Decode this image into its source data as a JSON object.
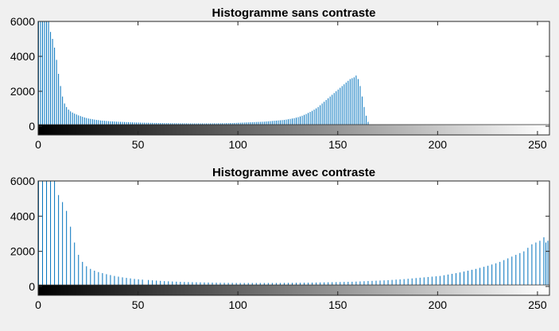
{
  "colors": {
    "figure_background": "#f0f0f0",
    "axes_background": "#ffffff",
    "stem": "#0072bd",
    "axis": "#262626"
  },
  "chart_data": [
    {
      "type": "bar",
      "title": "Histogramme sans contraste",
      "xlabel": "",
      "ylabel": "",
      "xlim": [
        0,
        256
      ],
      "ylim": [
        -500,
        6000
      ],
      "xticks": [
        "0",
        "50",
        "100",
        "150",
        "200",
        "250"
      ],
      "yticks": [
        "0",
        "2000",
        "4000",
        "6000"
      ],
      "colorbar": "grayscale 0-255",
      "grid": false,
      "points": [
        [
          0,
          6000
        ],
        [
          1,
          6000
        ],
        [
          2,
          6000
        ],
        [
          3,
          6000
        ],
        [
          4,
          6000
        ],
        [
          5,
          6000
        ],
        [
          6,
          5400
        ],
        [
          7,
          5000
        ],
        [
          8,
          4500
        ],
        [
          9,
          3800
        ],
        [
          10,
          3000
        ],
        [
          11,
          2300
        ],
        [
          12,
          1700
        ],
        [
          13,
          1300
        ],
        [
          14,
          1100
        ],
        [
          15,
          950
        ],
        [
          16,
          850
        ],
        [
          17,
          780
        ],
        [
          18,
          720
        ],
        [
          19,
          670
        ],
        [
          20,
          620
        ],
        [
          21,
          580
        ],
        [
          22,
          540
        ],
        [
          23,
          500
        ],
        [
          24,
          470
        ],
        [
          25,
          440
        ],
        [
          26,
          420
        ],
        [
          27,
          400
        ],
        [
          28,
          380
        ],
        [
          29,
          360
        ],
        [
          30,
          350
        ],
        [
          31,
          330
        ],
        [
          32,
          320
        ],
        [
          33,
          310
        ],
        [
          34,
          300
        ],
        [
          35,
          290
        ],
        [
          36,
          280
        ],
        [
          37,
          275
        ],
        [
          38,
          270
        ],
        [
          39,
          260
        ],
        [
          40,
          255
        ],
        [
          41,
          250
        ],
        [
          42,
          245
        ],
        [
          43,
          240
        ],
        [
          44,
          235
        ],
        [
          45,
          230
        ],
        [
          46,
          225
        ],
        [
          47,
          220
        ],
        [
          48,
          215
        ],
        [
          49,
          210
        ],
        [
          50,
          210
        ],
        [
          51,
          205
        ],
        [
          52,
          200
        ],
        [
          53,
          200
        ],
        [
          54,
          195
        ],
        [
          55,
          195
        ],
        [
          56,
          190
        ],
        [
          57,
          190
        ],
        [
          58,
          185
        ],
        [
          59,
          185
        ],
        [
          60,
          180
        ],
        [
          61,
          180
        ],
        [
          62,
          180
        ],
        [
          63,
          175
        ],
        [
          64,
          175
        ],
        [
          65,
          175
        ],
        [
          66,
          170
        ],
        [
          67,
          170
        ],
        [
          68,
          170
        ],
        [
          69,
          170
        ],
        [
          70,
          165
        ],
        [
          71,
          165
        ],
        [
          72,
          165
        ],
        [
          73,
          165
        ],
        [
          74,
          165
        ],
        [
          75,
          160
        ],
        [
          76,
          160
        ],
        [
          77,
          160
        ],
        [
          78,
          160
        ],
        [
          79,
          160
        ],
        [
          80,
          160
        ],
        [
          81,
          160
        ],
        [
          82,
          160
        ],
        [
          83,
          160
        ],
        [
          84,
          160
        ],
        [
          85,
          160
        ],
        [
          86,
          160
        ],
        [
          87,
          165
        ],
        [
          88,
          165
        ],
        [
          89,
          165
        ],
        [
          90,
          165
        ],
        [
          91,
          170
        ],
        [
          92,
          170
        ],
        [
          93,
          170
        ],
        [
          94,
          175
        ],
        [
          95,
          175
        ],
        [
          96,
          180
        ],
        [
          97,
          180
        ],
        [
          98,
          185
        ],
        [
          99,
          190
        ],
        [
          100,
          195
        ],
        [
          101,
          200
        ],
        [
          102,
          205
        ],
        [
          103,
          210
        ],
        [
          104,
          215
        ],
        [
          105,
          220
        ],
        [
          106,
          225
        ],
        [
          107,
          230
        ],
        [
          108,
          235
        ],
        [
          109,
          240
        ],
        [
          110,
          245
        ],
        [
          111,
          250
        ],
        [
          112,
          255
        ],
        [
          113,
          260
        ],
        [
          114,
          270
        ],
        [
          115,
          280
        ],
        [
          116,
          290
        ],
        [
          117,
          300
        ],
        [
          118,
          310
        ],
        [
          119,
          320
        ],
        [
          120,
          330
        ],
        [
          121,
          340
        ],
        [
          122,
          350
        ],
        [
          123,
          360
        ],
        [
          124,
          380
        ],
        [
          125,
          400
        ],
        [
          126,
          420
        ],
        [
          127,
          440
        ],
        [
          128,
          460
        ],
        [
          129,
          490
        ],
        [
          130,
          520
        ],
        [
          131,
          560
        ],
        [
          132,
          600
        ],
        [
          133,
          650
        ],
        [
          134,
          700
        ],
        [
          135,
          760
        ],
        [
          136,
          820
        ],
        [
          137,
          880
        ],
        [
          138,
          950
        ],
        [
          139,
          1020
        ],
        [
          140,
          1100
        ],
        [
          141,
          1200
        ],
        [
          142,
          1300
        ],
        [
          143,
          1400
        ],
        [
          144,
          1500
        ],
        [
          145,
          1600
        ],
        [
          146,
          1700
        ],
        [
          147,
          1800
        ],
        [
          148,
          1900
        ],
        [
          149,
          2000
        ],
        [
          150,
          2100
        ],
        [
          151,
          2200
        ],
        [
          152,
          2300
        ],
        [
          153,
          2400
        ],
        [
          154,
          2500
        ],
        [
          155,
          2600
        ],
        [
          156,
          2700
        ],
        [
          157,
          2750
        ],
        [
          158,
          2800
        ],
        [
          159,
          2900
        ],
        [
          160,
          2700
        ],
        [
          161,
          2300
        ],
        [
          162,
          1700
        ],
        [
          163,
          1100
        ],
        [
          164,
          600
        ],
        [
          165,
          250
        ],
        [
          166,
          80
        ],
        [
          167,
          20
        ]
      ]
    },
    {
      "type": "bar",
      "title": "Histogramme avec contraste",
      "xlabel": "",
      "ylabel": "",
      "xlim": [
        0,
        256
      ],
      "ylim": [
        -500,
        6000
      ],
      "xticks": [
        "0",
        "50",
        "100",
        "150",
        "200",
        "250"
      ],
      "yticks": [
        "0",
        "2000",
        "4000",
        "6000"
      ],
      "colorbar": "grayscale 0-255",
      "grid": false,
      "points": [
        [
          0,
          6000
        ],
        [
          2,
          6000
        ],
        [
          4,
          6000
        ],
        [
          6,
          6000
        ],
        [
          8,
          6000
        ],
        [
          10,
          5200
        ],
        [
          12,
          4800
        ],
        [
          14,
          4300
        ],
        [
          16,
          3400
        ],
        [
          18,
          2500
        ],
        [
          20,
          1800
        ],
        [
          22,
          1400
        ],
        [
          24,
          1150
        ],
        [
          26,
          1000
        ],
        [
          28,
          900
        ],
        [
          30,
          820
        ],
        [
          32,
          760
        ],
        [
          34,
          700
        ],
        [
          36,
          650
        ],
        [
          38,
          600
        ],
        [
          40,
          560
        ],
        [
          42,
          520
        ],
        [
          44,
          490
        ],
        [
          46,
          460
        ],
        [
          48,
          430
        ],
        [
          50,
          410
        ],
        [
          52,
          390
        ],
        [
          55,
          370
        ],
        [
          57,
          350
        ],
        [
          59,
          335
        ],
        [
          61,
          320
        ],
        [
          63,
          305
        ],
        [
          65,
          295
        ],
        [
          67,
          285
        ],
        [
          69,
          275
        ],
        [
          71,
          265
        ],
        [
          73,
          255
        ],
        [
          75,
          250
        ],
        [
          77,
          245
        ],
        [
          79,
          240
        ],
        [
          81,
          235
        ],
        [
          83,
          230
        ],
        [
          85,
          225
        ],
        [
          87,
          220
        ],
        [
          89,
          215
        ],
        [
          91,
          210
        ],
        [
          93,
          210
        ],
        [
          95,
          205
        ],
        [
          97,
          205
        ],
        [
          99,
          200
        ],
        [
          101,
          200
        ],
        [
          103,
          200
        ],
        [
          105,
          200
        ],
        [
          107,
          200
        ],
        [
          109,
          200
        ],
        [
          111,
          200
        ],
        [
          113,
          200
        ],
        [
          115,
          200
        ],
        [
          117,
          200
        ],
        [
          119,
          200
        ],
        [
          121,
          200
        ],
        [
          123,
          205
        ],
        [
          125,
          205
        ],
        [
          127,
          205
        ],
        [
          129,
          210
        ],
        [
          131,
          210
        ],
        [
          133,
          215
        ],
        [
          135,
          215
        ],
        [
          137,
          220
        ],
        [
          139,
          225
        ],
        [
          141,
          230
        ],
        [
          143,
          235
        ],
        [
          145,
          240
        ],
        [
          147,
          245
        ],
        [
          149,
          250
        ],
        [
          151,
          255
        ],
        [
          153,
          260
        ],
        [
          155,
          265
        ],
        [
          157,
          270
        ],
        [
          159,
          280
        ],
        [
          161,
          290
        ],
        [
          163,
          300
        ],
        [
          165,
          310
        ],
        [
          167,
          320
        ],
        [
          169,
          330
        ],
        [
          171,
          340
        ],
        [
          173,
          350
        ],
        [
          175,
          360
        ],
        [
          177,
          375
        ],
        [
          179,
          390
        ],
        [
          181,
          405
        ],
        [
          183,
          420
        ],
        [
          185,
          440
        ],
        [
          187,
          460
        ],
        [
          189,
          480
        ],
        [
          191,
          500
        ],
        [
          193,
          520
        ],
        [
          195,
          540
        ],
        [
          197,
          560
        ],
        [
          199,
          580
        ],
        [
          201,
          600
        ],
        [
          203,
          640
        ],
        [
          205,
          680
        ],
        [
          207,
          720
        ],
        [
          209,
          760
        ],
        [
          211,
          800
        ],
        [
          213,
          850
        ],
        [
          215,
          900
        ],
        [
          217,
          950
        ],
        [
          219,
          1000
        ],
        [
          221,
          1060
        ],
        [
          223,
          1120
        ],
        [
          225,
          1180
        ],
        [
          227,
          1250
        ],
        [
          229,
          1320
        ],
        [
          231,
          1400
        ],
        [
          233,
          1500
        ],
        [
          235,
          1600
        ],
        [
          237,
          1700
        ],
        [
          239,
          1800
        ],
        [
          241,
          1900
        ],
        [
          243,
          2000
        ],
        [
          245,
          2200
        ],
        [
          247,
          2400
        ],
        [
          249,
          2500
        ],
        [
          251,
          2600
        ],
        [
          253,
          2800
        ],
        [
          254,
          2500
        ],
        [
          255,
          2600
        ]
      ]
    }
  ]
}
